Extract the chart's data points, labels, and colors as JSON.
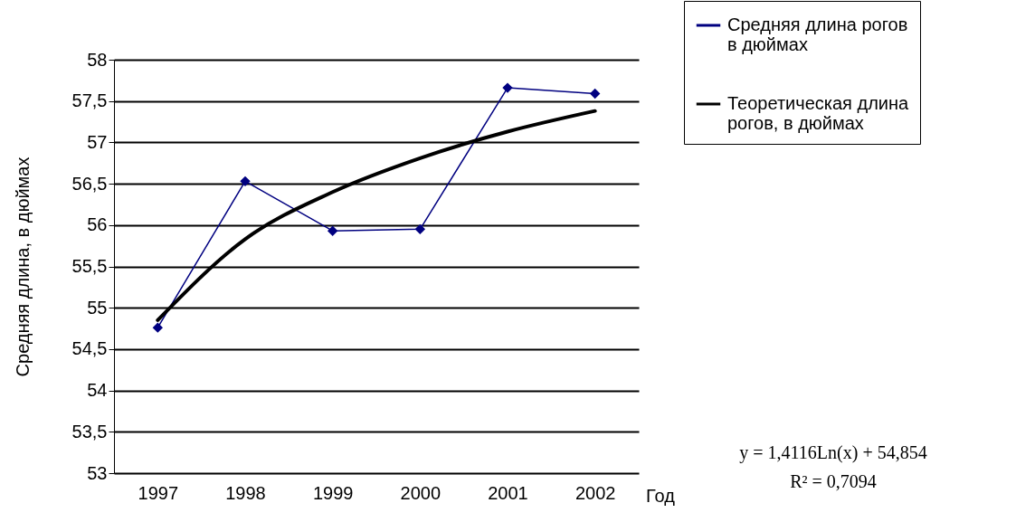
{
  "chart_data": {
    "type": "line",
    "xlabel": "Год",
    "ylabel": "Средняя длина, в дюймах",
    "categories": [
      "1997",
      "1998",
      "1999",
      "2000",
      "2001",
      "2002"
    ],
    "series": [
      {
        "name": "Средняя длина рогов в дюймах",
        "color": "#000080",
        "marker": "diamond",
        "values": [
          54.76,
          56.53,
          55.93,
          55.95,
          57.66,
          57.59
        ]
      },
      {
        "name": "Теоретическая длина рогов, в дюймах",
        "color": "#000000",
        "marker": "none",
        "values": [
          54.85,
          55.83,
          56.4,
          56.81,
          57.13,
          57.38
        ]
      }
    ],
    "ylim": [
      53,
      58
    ],
    "yticks": [
      53,
      {
        "value": 53.5,
        "label": "53,5"
      },
      54,
      {
        "value": 54.5,
        "label": "54,5"
      },
      55,
      {
        "value": 55.5,
        "label": "55,5"
      },
      56,
      {
        "value": 56.5,
        "label": "56,5"
      },
      57,
      {
        "value": 57.5,
        "label": "57,5"
      },
      58
    ],
    "grid": "y",
    "legend": "top right",
    "annotations": [
      "y = 1,4116Ln(x) + 54,854",
      "R² = 0,7094"
    ]
  }
}
